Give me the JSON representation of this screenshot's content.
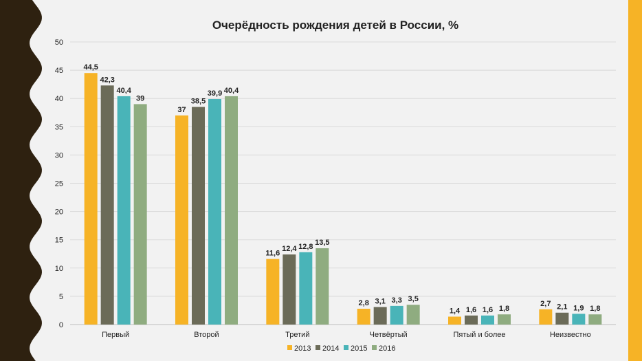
{
  "colors": {
    "s2013": "#f6b326",
    "s2014": "#6b6b58",
    "s2015": "#49b4b8",
    "s2016": "#8fac80",
    "border": "#2e2110",
    "accent_stripe": "#f6b326"
  },
  "chart_data": {
    "type": "bar",
    "title": "Очерёдность рождения детей в России, %",
    "categories": [
      "Первый",
      "Второй",
      "Третий",
      "Четвёртый",
      "Пятый и более",
      "Неизвестно"
    ],
    "series": [
      {
        "name": "2013",
        "values": [
          44.5,
          37,
          11.6,
          2.8,
          1.4,
          2.7
        ],
        "labels": [
          "44,5",
          "37",
          "11,6",
          "2,8",
          "1,4",
          "2,7"
        ]
      },
      {
        "name": "2014",
        "values": [
          42.3,
          38.5,
          12.4,
          3.1,
          1.6,
          2.1
        ],
        "labels": [
          "42,3",
          "38,5",
          "12,4",
          "3,1",
          "1,6",
          "2,1"
        ]
      },
      {
        "name": "2015",
        "values": [
          40.4,
          39.9,
          12.8,
          3.3,
          1.6,
          1.9
        ],
        "labels": [
          "40,4",
          "39,9",
          "12,8",
          "3,3",
          "1,6",
          "1,9"
        ]
      },
      {
        "name": "2016",
        "values": [
          39,
          40.4,
          13.5,
          3.5,
          1.8,
          1.8
        ],
        "labels": [
          "39",
          "40,4",
          "13,5",
          "3,5",
          "1,8",
          "1,8"
        ]
      }
    ],
    "ylim": [
      0,
      50
    ],
    "yticks": [
      "0",
      "5",
      "10",
      "15",
      "20",
      "25",
      "30",
      "35",
      "40",
      "45",
      "50"
    ],
    "grid": true,
    "legend_position": "bottom"
  }
}
